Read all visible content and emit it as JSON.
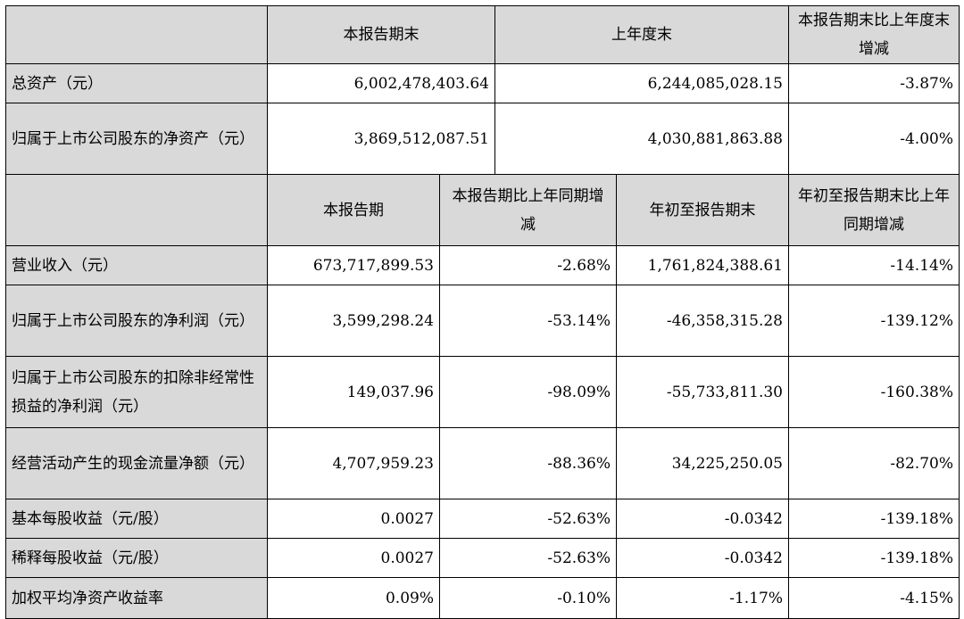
{
  "top_table": {
    "headers": [
      "本报告期末",
      "上年度末",
      "本报告期末比上年度末增减"
    ],
    "rows": [
      {
        "label": "总资产（元）",
        "values": [
          "6,002,478,403.64",
          "6,244,085,028.15",
          "-3.87%"
        ]
      },
      {
        "label": "归属于上市公司股东的净资产（元）",
        "values": [
          "3,869,512,087.51",
          "4,030,881,863.88",
          "-4.00%"
        ]
      }
    ]
  },
  "bottom_table": {
    "headers": [
      "本报告期",
      "本报告期比上年同期增减",
      "年初至报告期末",
      "年初至报告期末比上年同期增减"
    ],
    "rows": [
      {
        "label": "营业收入（元）",
        "values": [
          "673,717,899.53",
          "-2.68%",
          "1,761,824,388.61",
          "-14.14%"
        ]
      },
      {
        "label": "归属于上市公司股东的净利润（元）",
        "values": [
          "3,599,298.24",
          "-53.14%",
          "-46,358,315.28",
          "-139.12%"
        ]
      },
      {
        "label": "归属于上市公司股东的扣除非经常性损益的净利润（元）",
        "values": [
          "149,037.96",
          "-98.09%",
          "-55,733,811.30",
          "-160.38%"
        ]
      },
      {
        "label": "经营活动产生的现金流量净额（元）",
        "values": [
          "4,707,959.23",
          "-88.36%",
          "34,225,250.05",
          "-82.70%"
        ]
      },
      {
        "label": "基本每股收益（元/股）",
        "values": [
          "0.0027",
          "-52.63%",
          "-0.0342",
          "-139.18%"
        ]
      },
      {
        "label": "稀释每股收益（元/股）",
        "values": [
          "0.0027",
          "-52.63%",
          "-0.0342",
          "-139.18%"
        ]
      },
      {
        "label": "加权平均净资产收益率",
        "values": [
          "0.09%",
          "-0.10%",
          "-1.17%",
          "-4.15%"
        ]
      }
    ]
  }
}
